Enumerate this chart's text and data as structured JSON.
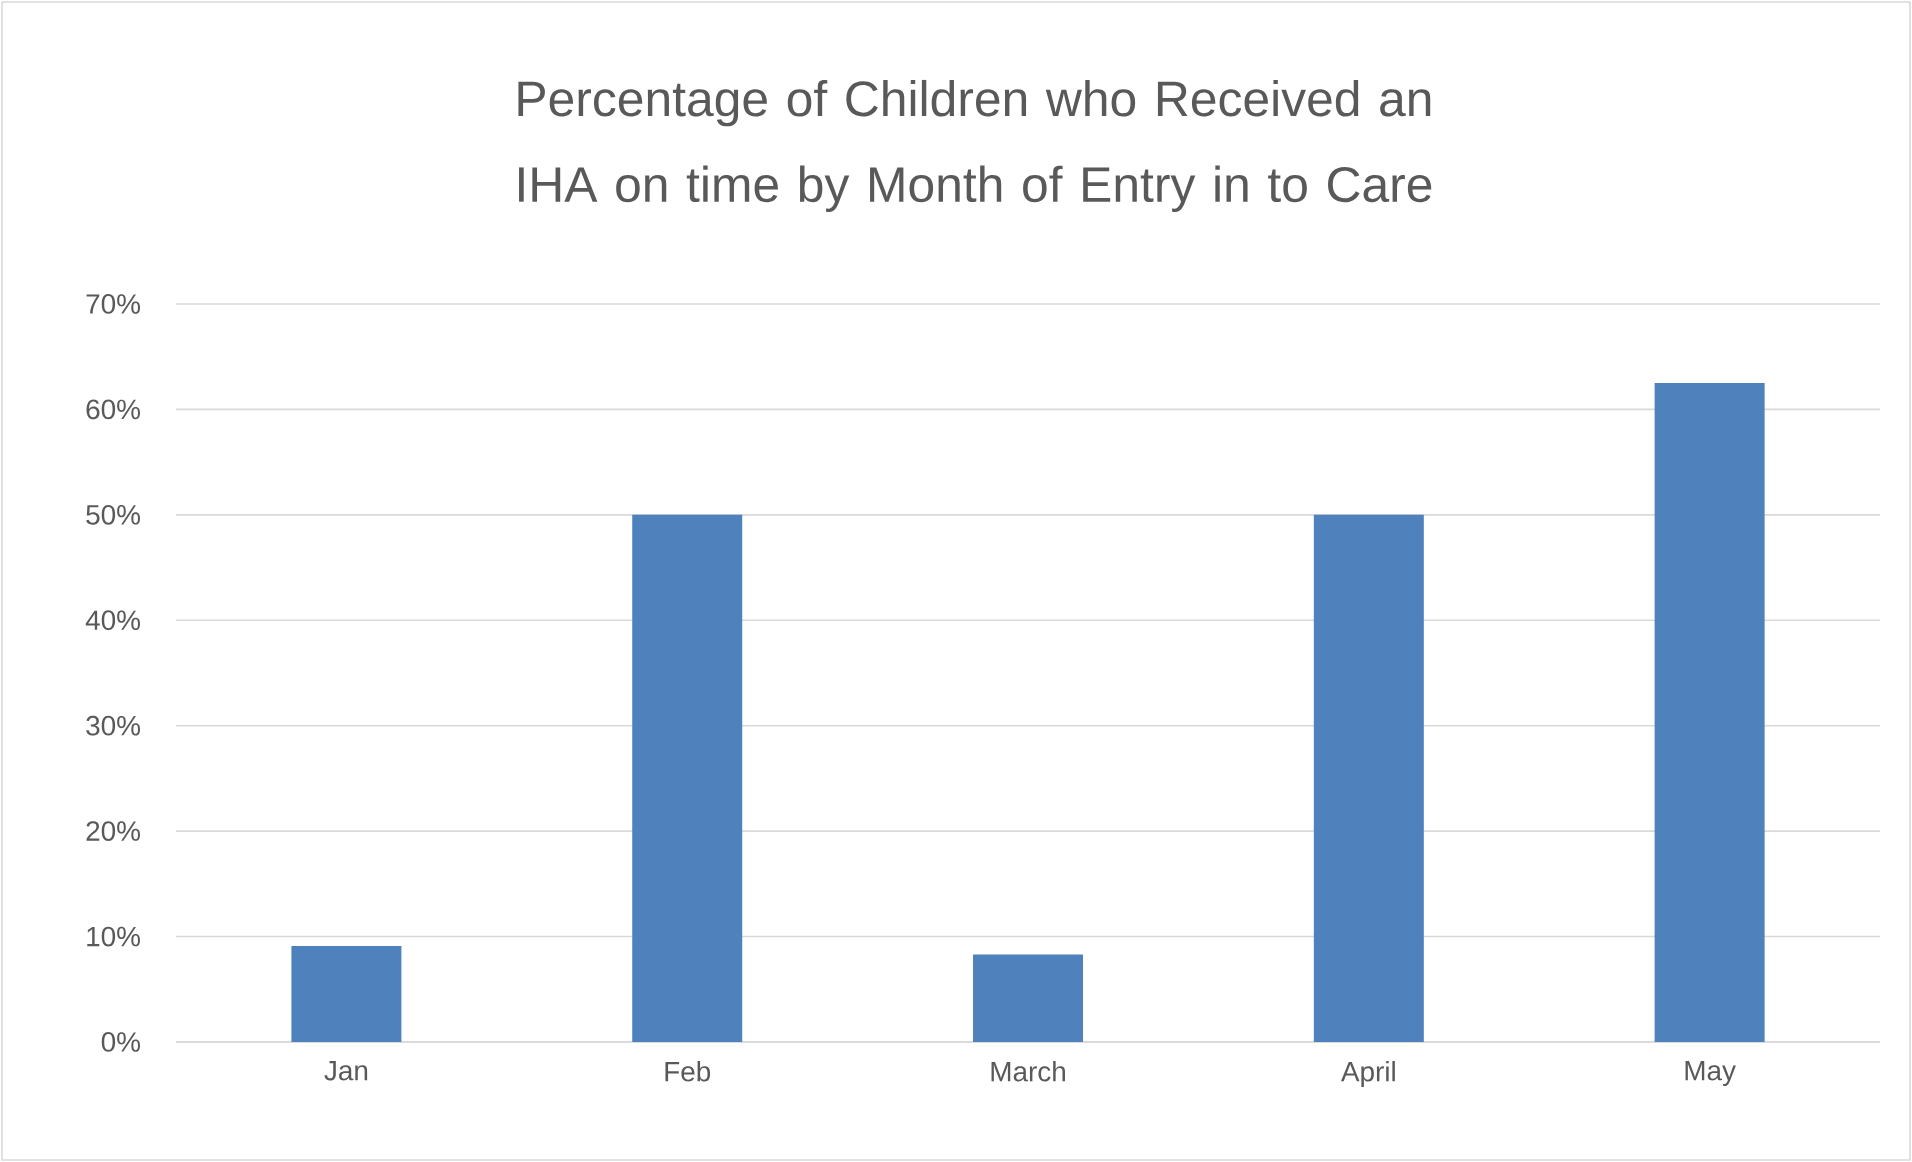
{
  "chart_data": {
    "type": "bar",
    "title": "Percentage of Children who Received an IHA on time by Month of Entry in to Care",
    "categories": [
      "Jan",
      "Feb",
      "March",
      "April",
      "May"
    ],
    "values": [
      9.1,
      50,
      8.3,
      50,
      62.5
    ],
    "color": "#4f81bd",
    "ylim": [
      0,
      70
    ],
    "yticks": [
      {
        "value": 0,
        "label": "0%"
      },
      {
        "value": 10,
        "label": "10%"
      },
      {
        "value": 20,
        "label": "20%"
      },
      {
        "value": 30,
        "label": "30%"
      },
      {
        "value": 40,
        "label": "40%"
      },
      {
        "value": 50,
        "label": "50%"
      },
      {
        "value": 60,
        "label": "60%"
      },
      {
        "value": 70,
        "label": "70%"
      }
    ],
    "grid": "y"
  }
}
